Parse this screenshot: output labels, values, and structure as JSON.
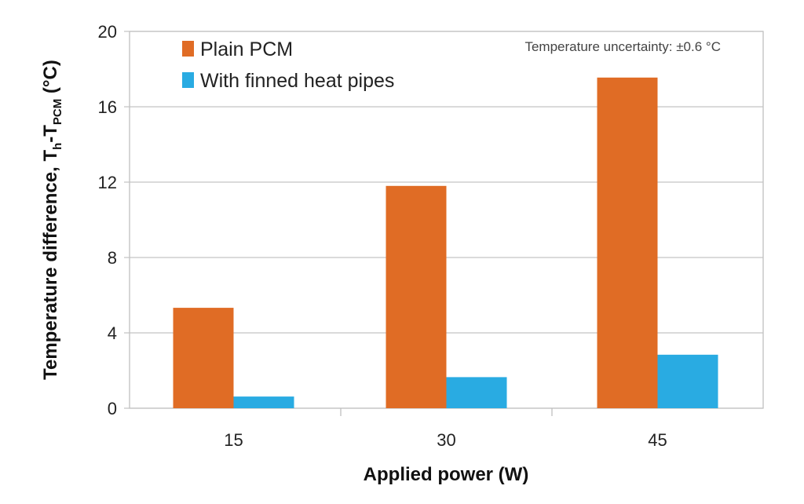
{
  "chart_data": {
    "type": "bar",
    "title": "",
    "xlabel": "Applied power (W)",
    "ylabel": {
      "main": "Temperature difference, T",
      "sub1": "h",
      "dash": "-T",
      "sub2": "PCM",
      "unit": " (°C)"
    },
    "categories": [
      "15",
      "30",
      "45"
    ],
    "series": [
      {
        "name": "Plain PCM",
        "color": "#e06c25",
        "values": [
          5.33,
          11.8,
          17.55
        ]
      },
      {
        "name": "With finned heat pipes",
        "color": "#29abe2",
        "values": [
          0.62,
          1.65,
          2.84
        ]
      }
    ],
    "ylim": [
      0,
      20
    ],
    "yticks": [
      "0",
      "4",
      "8",
      "12",
      "16",
      "20"
    ],
    "grid": true,
    "legend_position": "top-left",
    "annotation": "Temperature uncertainty: ±0.6 °C"
  }
}
